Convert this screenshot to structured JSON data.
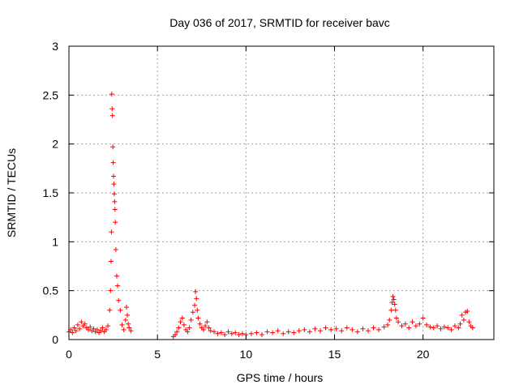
{
  "chart_data": {
    "type": "scatter",
    "title": "Day 036 of 2017, SRMTID for receiver bavc",
    "xlabel": "GPS time / hours",
    "ylabel": "SRMTID / TECUs",
    "xlim": [
      0,
      24
    ],
    "ylim": [
      0,
      3
    ],
    "xticks": [
      0,
      5,
      10,
      15,
      20
    ],
    "xtick_labels": [
      "0",
      "5",
      "10",
      "15",
      "20"
    ],
    "yticks": [
      0,
      0.5,
      1,
      1.5,
      2,
      2.5,
      3
    ],
    "ytick_labels": [
      "0",
      "0.5",
      "1",
      "1.5",
      "2",
      "2.5",
      "3"
    ],
    "grid": true,
    "marker": "+",
    "series": [
      {
        "name": "SRMTID",
        "color": "#ff0000",
        "x": [
          0.0,
          0.1,
          0.2,
          0.3,
          0.4,
          0.5,
          0.6,
          0.7,
          0.8,
          0.9,
          1.0,
          1.1,
          1.2,
          1.3,
          1.4,
          1.5,
          1.6,
          1.7,
          1.8,
          1.9,
          2.0,
          2.1,
          2.2,
          2.3,
          2.35,
          2.38,
          2.4,
          2.42,
          2.44,
          2.46,
          2.48,
          2.5,
          2.52,
          2.54,
          2.56,
          2.58,
          2.6,
          2.62,
          2.65,
          2.7,
          2.75,
          2.8,
          2.9,
          3.0,
          3.1,
          3.2,
          3.25,
          3.3,
          3.35,
          3.4,
          3.5,
          5.9,
          6.0,
          6.1,
          6.2,
          6.3,
          6.4,
          6.5,
          6.6,
          6.7,
          6.8,
          6.9,
          7.0,
          7.1,
          7.15,
          7.2,
          7.25,
          7.3,
          7.4,
          7.5,
          7.6,
          7.7,
          7.8,
          7.9,
          8.0,
          8.2,
          8.4,
          8.6,
          8.8,
          9.0,
          9.2,
          9.4,
          9.6,
          9.8,
          10.0,
          10.3,
          10.6,
          10.9,
          11.2,
          11.5,
          11.8,
          12.1,
          12.4,
          12.7,
          13.0,
          13.3,
          13.6,
          13.9,
          14.2,
          14.5,
          14.8,
          15.1,
          15.4,
          15.7,
          16.0,
          16.3,
          16.6,
          16.9,
          17.2,
          17.5,
          17.8,
          18.0,
          18.1,
          18.2,
          18.25,
          18.3,
          18.35,
          18.4,
          18.45,
          18.5,
          18.6,
          18.8,
          19.0,
          19.2,
          19.4,
          19.6,
          19.8,
          20.0,
          20.2,
          20.4,
          20.6,
          20.8,
          21.0,
          21.2,
          21.4,
          21.6,
          21.8,
          22.0,
          22.1,
          22.2,
          22.3,
          22.4,
          22.5,
          22.6,
          22.7,
          22.8
        ],
        "y": [
          0.08,
          0.1,
          0.07,
          0.12,
          0.09,
          0.15,
          0.11,
          0.18,
          0.14,
          0.16,
          0.12,
          0.1,
          0.13,
          0.09,
          0.11,
          0.08,
          0.1,
          0.07,
          0.09,
          0.12,
          0.08,
          0.1,
          0.14,
          0.3,
          0.5,
          0.8,
          1.1,
          2.51,
          2.36,
          2.29,
          1.97,
          1.81,
          1.67,
          1.59,
          1.49,
          1.41,
          1.33,
          1.2,
          0.92,
          0.65,
          0.55,
          0.4,
          0.3,
          0.15,
          0.1,
          0.2,
          0.33,
          0.25,
          0.16,
          0.12,
          0.09,
          0.03,
          0.05,
          0.08,
          0.12,
          0.18,
          0.22,
          0.15,
          0.1,
          0.08,
          0.12,
          0.2,
          0.28,
          0.35,
          0.49,
          0.42,
          0.3,
          0.22,
          0.16,
          0.12,
          0.1,
          0.14,
          0.18,
          0.12,
          0.09,
          0.08,
          0.06,
          0.07,
          0.05,
          0.08,
          0.06,
          0.07,
          0.05,
          0.06,
          0.05,
          0.06,
          0.07,
          0.05,
          0.08,
          0.07,
          0.09,
          0.06,
          0.08,
          0.07,
          0.09,
          0.1,
          0.08,
          0.11,
          0.09,
          0.12,
          0.1,
          0.11,
          0.09,
          0.12,
          0.1,
          0.08,
          0.11,
          0.09,
          0.12,
          0.1,
          0.13,
          0.15,
          0.2,
          0.3,
          0.38,
          0.44,
          0.41,
          0.36,
          0.3,
          0.22,
          0.18,
          0.14,
          0.16,
          0.12,
          0.18,
          0.14,
          0.16,
          0.22,
          0.15,
          0.13,
          0.12,
          0.14,
          0.11,
          0.13,
          0.12,
          0.1,
          0.14,
          0.12,
          0.16,
          0.25,
          0.2,
          0.28,
          0.29,
          0.18,
          0.14,
          0.12
        ]
      }
    ]
  }
}
